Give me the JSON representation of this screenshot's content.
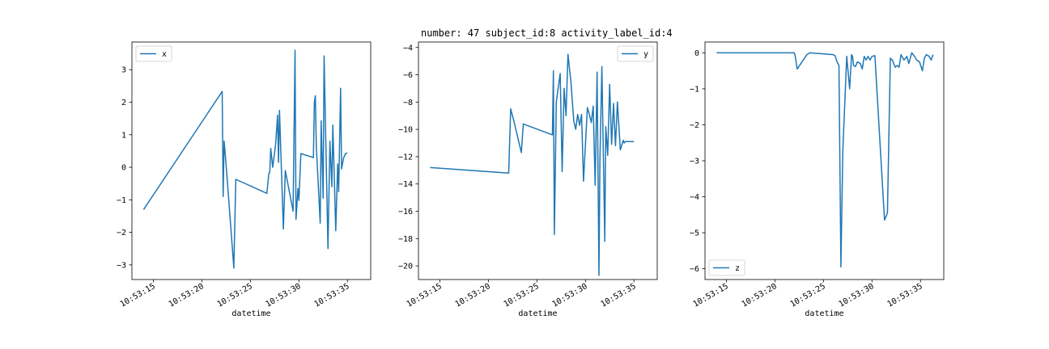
{
  "figure_title": "number: 47 subject_id:8 activity_label_id:4",
  "colors": {
    "line": "#1f77b4",
    "axes": "#000000",
    "background": "#ffffff"
  },
  "chart_data": [
    {
      "type": "line",
      "name": "x",
      "title": "",
      "xlabel": "datetime",
      "ylabel": "",
      "legend": "upper left",
      "legend_label": "x",
      "grid": false,
      "xlim": [
        "10:53:12.8",
        "10:53:37.4"
      ],
      "ylim": [
        -3.45,
        3.85
      ],
      "xticks": [
        "10:53:15",
        "10:53:20",
        "10:53:25",
        "10:53:30",
        "10:53:35"
      ],
      "yticks": [
        -3,
        -2,
        -1,
        0,
        1,
        2,
        3
      ],
      "x": [
        "10:53:14.0",
        "10:53:22.1",
        "10:53:22.2",
        "10:53:22.3",
        "10:53:22.5",
        "10:53:23.3",
        "10:53:23.5",
        "10:53:26.7",
        "10:53:26.9",
        "10:53:27.0",
        "10:53:27.1",
        "10:53:27.3",
        "10:53:27.6",
        "10:53:27.8",
        "10:53:27.9",
        "10:53:28.0",
        "10:53:28.4",
        "10:53:28.6",
        "10:53:29.4",
        "10:53:29.6",
        "10:53:29.7",
        "10:53:29.9",
        "10:53:30.0",
        "10:53:30.2",
        "10:53:31.5",
        "10:53:31.6",
        "10:53:31.7",
        "10:53:31.8",
        "10:53:32.2",
        "10:53:32.3",
        "10:53:32.5",
        "10:53:32.6",
        "10:53:33.0",
        "10:53:33.2",
        "10:53:33.4",
        "10:53:33.5",
        "10:53:33.8",
        "10:53:34.0",
        "10:53:34.1",
        "10:53:34.3",
        "10:53:34.4",
        "10:53:34.6",
        "10:53:34.8",
        "10:53:35.0"
      ],
      "y": [
        -1.3,
        2.33,
        -0.9,
        0.8,
        0.1,
        -3.1,
        -0.37,
        -0.8,
        -0.2,
        -0.15,
        0.58,
        0.0,
        0.7,
        1.6,
        0.15,
        1.75,
        -1.9,
        -0.1,
        -1.35,
        3.6,
        -1.6,
        -0.65,
        -1.02,
        0.42,
        0.3,
        2.0,
        2.2,
        0.65,
        -1.72,
        1.43,
        -0.95,
        3.42,
        -2.5,
        0.8,
        -0.6,
        1.3,
        -1.95,
        0.1,
        -0.75,
        2.43,
        -0.05,
        0.28,
        0.42,
        0.44
      ]
    },
    {
      "type": "line",
      "name": "y",
      "title": "",
      "xlabel": "datetime",
      "ylabel": "",
      "legend": "upper right",
      "legend_label": "y",
      "grid": false,
      "xlim": [
        "10:53:12.8",
        "10:53:37.4"
      ],
      "ylim": [
        -21.0,
        -3.6
      ],
      "xticks": [
        "10:53:15",
        "10:53:20",
        "10:53:25",
        "10:53:30",
        "10:53:35"
      ],
      "yticks": [
        -20,
        -18,
        -16,
        -14,
        -12,
        -10,
        -8,
        -6,
        -4
      ],
      "x": [
        "10:53:14.0",
        "10:53:22.1",
        "10:53:22.3",
        "10:53:22.6",
        "10:53:23.4",
        "10:53:23.6",
        "10:53:26.6",
        "10:53:26.7",
        "10:53:26.8",
        "10:53:27.0",
        "10:53:27.4",
        "10:53:27.6",
        "10:53:27.8",
        "10:53:28.0",
        "10:53:28.2",
        "10:53:28.5",
        "10:53:28.8",
        "10:53:29.0",
        "10:53:29.2",
        "10:53:29.4",
        "10:53:29.6",
        "10:53:29.8",
        "10:53:30.2",
        "10:53:30.4",
        "10:53:30.6",
        "10:53:30.8",
        "10:53:31.0",
        "10:53:31.2",
        "10:53:31.4",
        "10:53:31.5",
        "10:53:31.7",
        "10:53:32.0",
        "10:53:32.1",
        "10:53:32.3",
        "10:53:32.5",
        "10:53:32.7",
        "10:53:32.9",
        "10:53:33.1",
        "10:53:33.3",
        "10:53:33.6",
        "10:53:33.9",
        "10:53:34.0",
        "10:53:34.1",
        "10:53:34.3",
        "10:53:34.5",
        "10:53:34.6",
        "10:53:34.8",
        "10:53:35.0"
      ],
      "y": [
        -12.8,
        -13.2,
        -8.5,
        -9.3,
        -11.7,
        -9.6,
        -10.4,
        -5.7,
        -17.7,
        -8.0,
        -5.9,
        -13.1,
        -7.0,
        -9.0,
        -4.5,
        -6.5,
        -9.4,
        -10.0,
        -8.9,
        -9.7,
        -8.9,
        -13.8,
        -8.4,
        -8.9,
        -9.5,
        -8.3,
        -14.1,
        -5.8,
        -20.7,
        -12.2,
        -5.4,
        -18.2,
        -9.8,
        -11.9,
        -6.7,
        -11.1,
        -8.1,
        -11.2,
        -8.0,
        -11.5,
        -10.8,
        -11.0,
        -10.9,
        -10.9,
        -10.9,
        -10.9,
        -10.9,
        -10.9
      ]
    },
    {
      "type": "line",
      "name": "z",
      "title": "",
      "xlabel": "datetime",
      "ylabel": "",
      "legend": "lower left",
      "legend_label": "z",
      "grid": false,
      "xlim": [
        "10:53:12.8",
        "10:53:37.4"
      ],
      "ylim": [
        -6.3,
        0.3
      ],
      "xticks": [
        "10:53:15",
        "10:53:20",
        "10:53:25",
        "10:53:30",
        "10:53:35"
      ],
      "yticks": [
        -6,
        -5,
        -4,
        -3,
        -2,
        -1,
        0
      ],
      "x": [
        "10:53:14.0",
        "10:53:22.0",
        "10:53:22.1",
        "10:53:22.3",
        "10:53:23.3",
        "10:53:23.6",
        "10:53:26.0",
        "10:53:26.2",
        "10:53:26.4",
        "10:53:26.6",
        "10:53:26.8",
        "10:53:27.0",
        "10:53:27.4",
        "10:53:27.7",
        "10:53:27.9",
        "10:53:28.0",
        "10:53:28.1",
        "10:53:28.3",
        "10:53:28.5",
        "10:53:28.8",
        "10:53:29.0",
        "10:53:29.2",
        "10:53:29.4",
        "10:53:29.6",
        "10:53:29.8",
        "10:53:30.0",
        "10:53:30.3",
        "10:53:31.3",
        "10:53:31.6",
        "10:53:31.9",
        "10:53:32.1",
        "10:53:32.4",
        "10:53:32.6",
        "10:53:32.8",
        "10:53:33.0",
        "10:53:33.3",
        "10:53:33.6",
        "10:53:33.8",
        "10:53:34.1",
        "10:53:34.4",
        "10:53:34.6",
        "10:53:34.9",
        "10:53:35.2",
        "10:53:35.4",
        "10:53:35.6",
        "10:53:35.9",
        "10:53:36.1",
        "10:53:36.3"
      ],
      "y": [
        0.0,
        0.0,
        -0.1,
        -0.45,
        -0.05,
        0.0,
        -0.05,
        -0.08,
        -0.25,
        -0.35,
        -5.95,
        -2.7,
        -0.1,
        -1.0,
        -0.05,
        -0.1,
        -0.35,
        -0.38,
        -0.25,
        -0.3,
        -0.45,
        -0.1,
        -0.2,
        -0.1,
        -0.2,
        -0.1,
        -0.08,
        -4.65,
        -4.45,
        -0.15,
        -0.2,
        -0.4,
        -0.35,
        -0.4,
        -0.05,
        -0.2,
        -0.1,
        -0.3,
        0.0,
        -0.1,
        -0.2,
        -0.25,
        -0.5,
        -0.15,
        -0.05,
        -0.1,
        -0.2,
        -0.05
      ]
    }
  ]
}
